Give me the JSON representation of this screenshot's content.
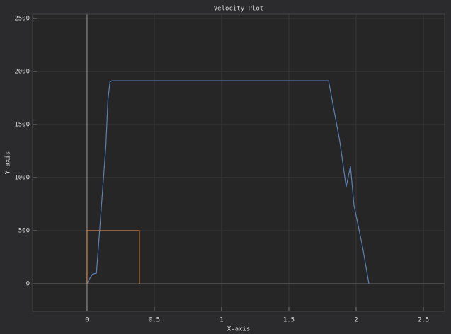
{
  "chart_data": {
    "type": "line",
    "title": "Velocity Plot",
    "x_label": "X-axis",
    "y_label": "Y-axis",
    "series": [
      {
        "color": "#5b7fb8",
        "x": [
          0,
          0.02,
          0.04,
          0.07,
          0.14,
          0.155,
          0.17,
          0.185,
          1.795,
          1.879,
          1.926,
          1.958,
          1.984,
          2.047,
          2.095
        ],
        "values": [
          0,
          50,
          90,
          100,
          1300,
          1730,
          1900,
          1913,
          1913,
          1340,
          913,
          1107,
          740,
          353,
          0
        ]
      },
      {
        "color": "#d4844f",
        "x": [
          0,
          0,
          0.389,
          0.389
        ],
        "values": [
          0,
          500,
          500,
          0
        ]
      }
    ],
    "xlim": [
      -0.405,
      2.658
    ],
    "xticks": [
      0,
      0.5,
      1,
      1.5,
      2,
      2.5
    ],
    "ylim": [
      -260,
      2540
    ],
    "yticks": [
      0,
      500,
      1000,
      1500,
      2000,
      2500
    ],
    "grid": true
  }
}
